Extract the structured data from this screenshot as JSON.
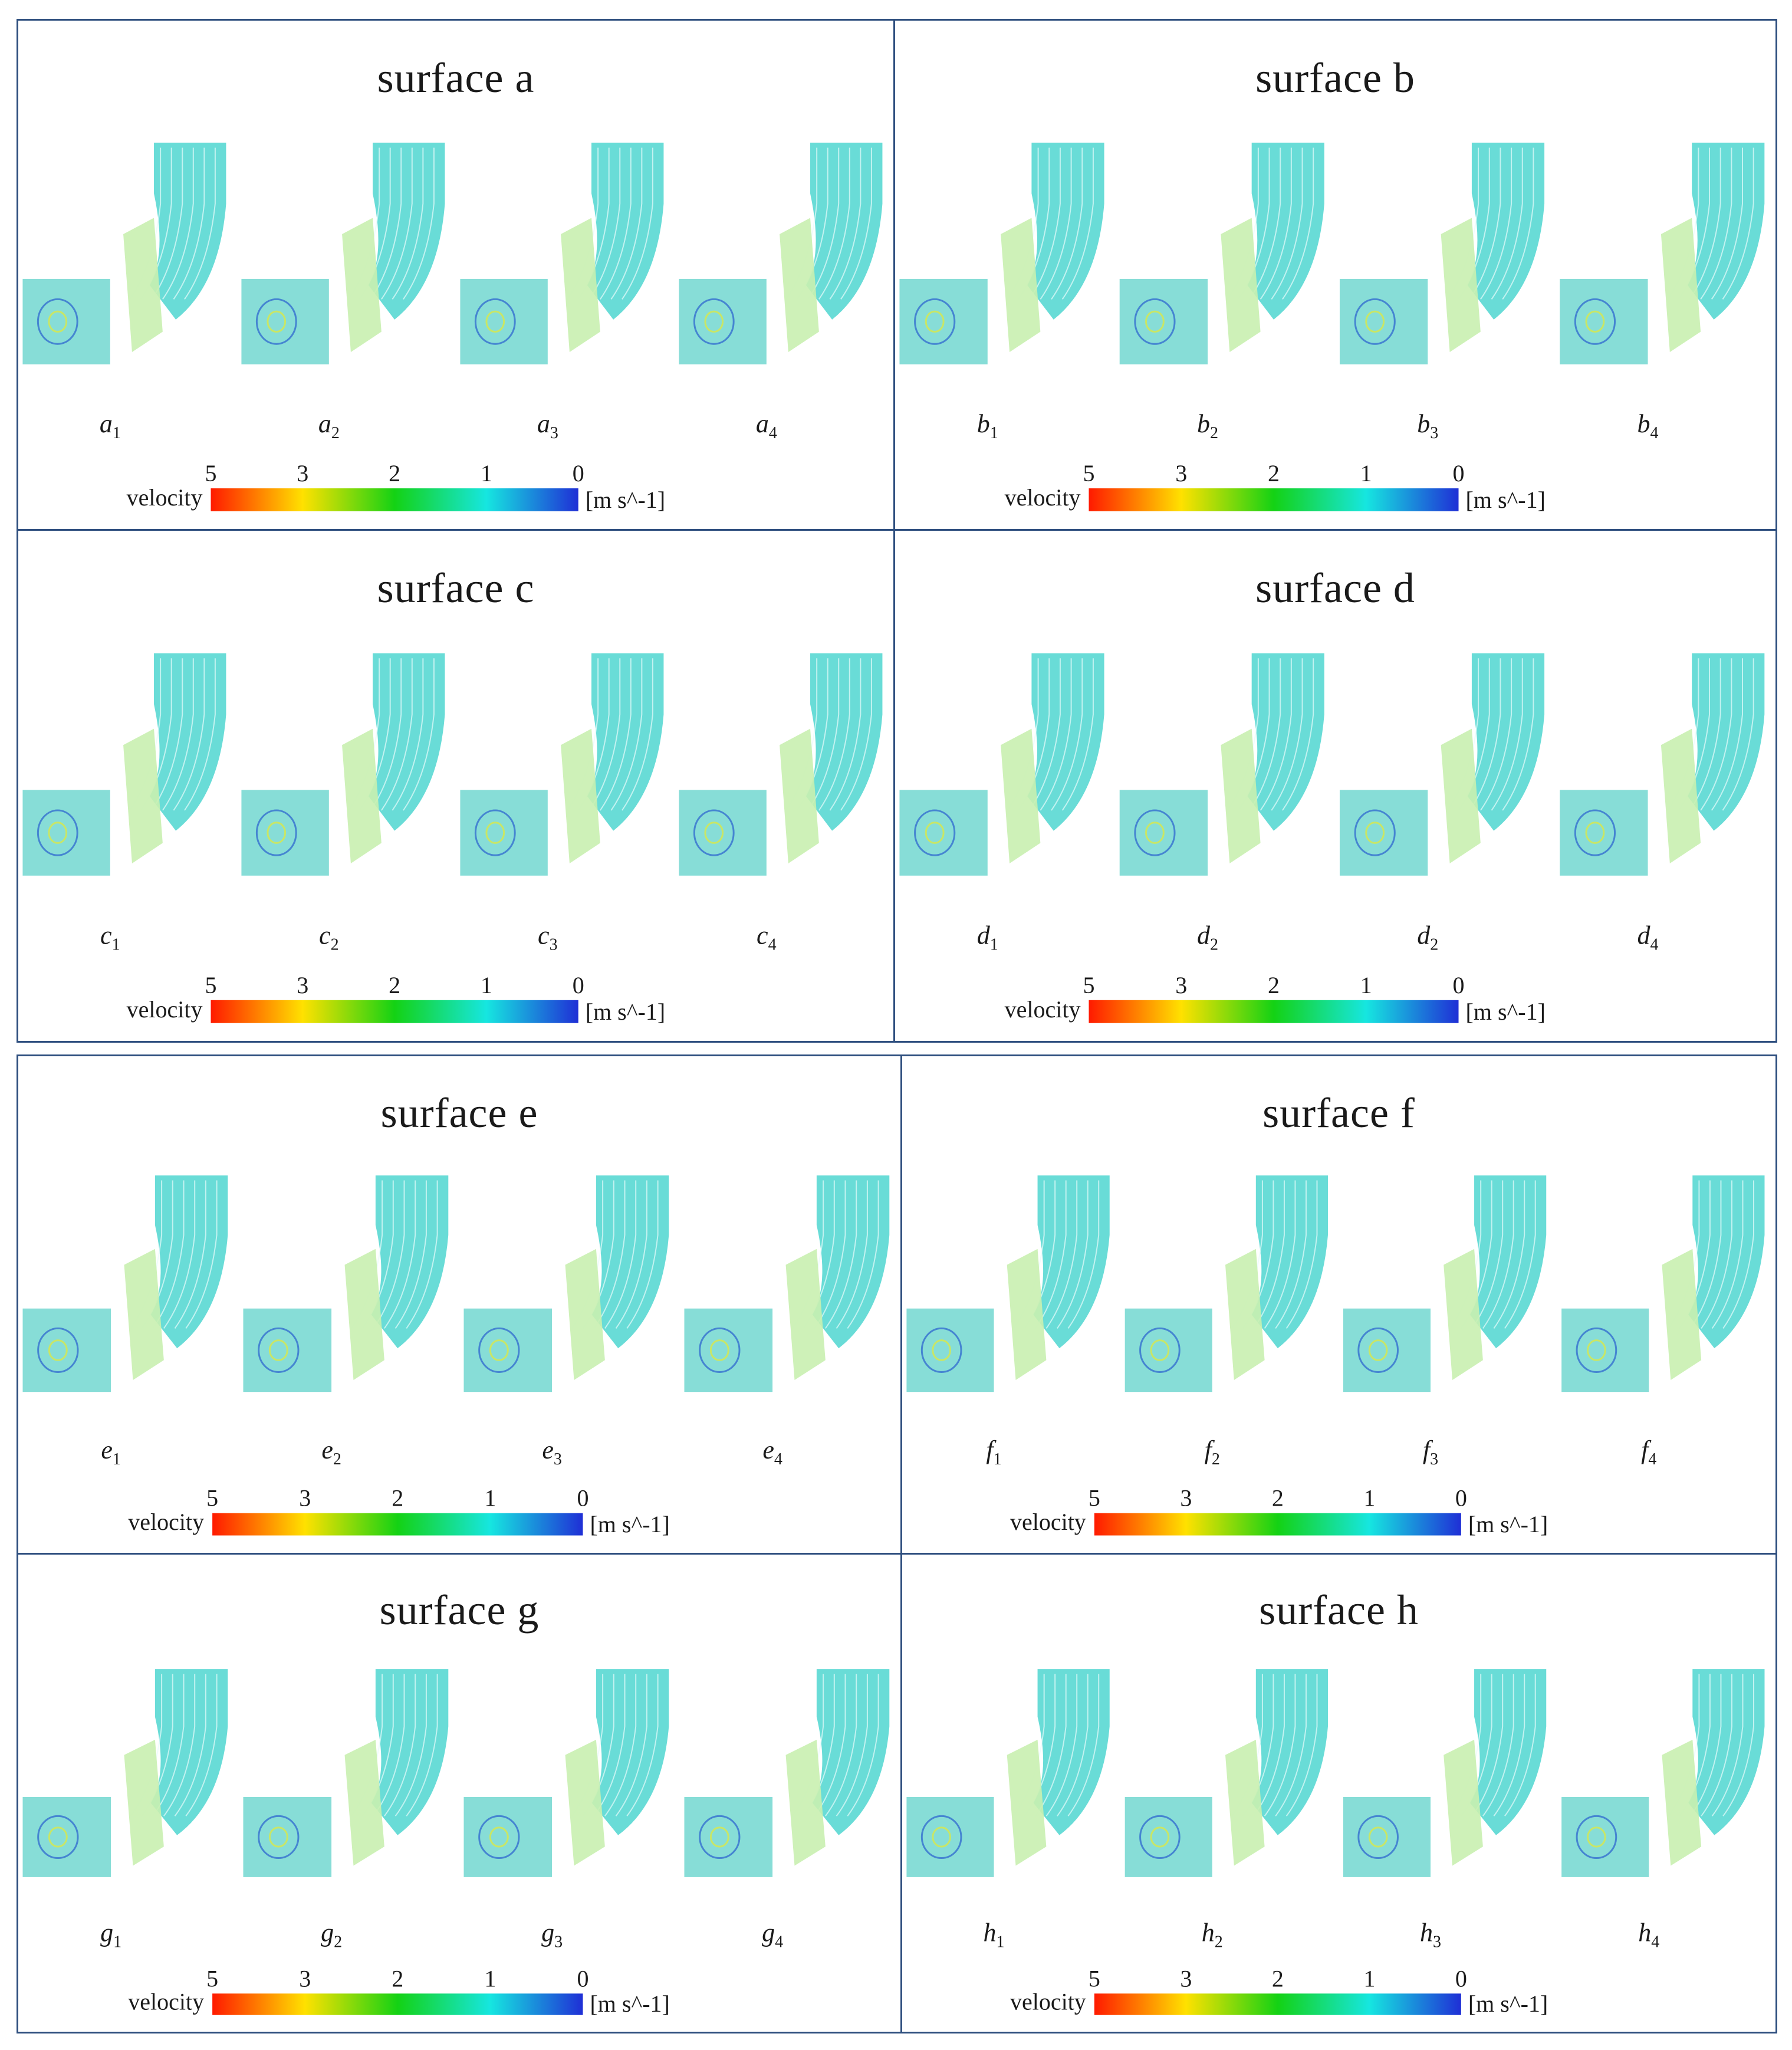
{
  "legend": {
    "title": "velocity",
    "unit": "[m s^-1]",
    "ticks": [
      "5",
      "3",
      "2",
      "1",
      "0"
    ],
    "colors": [
      "#ff1a00",
      "#ffe100",
      "#14d214",
      "#16e6e0",
      "#1f2fd6"
    ]
  },
  "panels": [
    {
      "title": "surface a",
      "letter": "a",
      "labels": [
        "1",
        "2",
        "3",
        "4"
      ]
    },
    {
      "title": "surface b",
      "letter": "b",
      "labels": [
        "1",
        "2",
        "3",
        "4"
      ]
    },
    {
      "title": "surface c",
      "letter": "c",
      "labels": [
        "1",
        "2",
        "3",
        "4"
      ]
    },
    {
      "title": "surface d",
      "letter": "d",
      "labels": [
        "1",
        "2",
        "2",
        "4"
      ]
    },
    {
      "title": "surface e",
      "letter": "e",
      "labels": [
        "1",
        "2",
        "3",
        "4"
      ]
    },
    {
      "title": "surface f",
      "letter": "f",
      "labels": [
        "1",
        "2",
        "3",
        "4"
      ]
    },
    {
      "title": "surface g",
      "letter": "g",
      "labels": [
        "1",
        "2",
        "3",
        "4"
      ]
    },
    {
      "title": "surface h",
      "letter": "h",
      "labels": [
        "1",
        "2",
        "3",
        "4"
      ]
    }
  ]
}
